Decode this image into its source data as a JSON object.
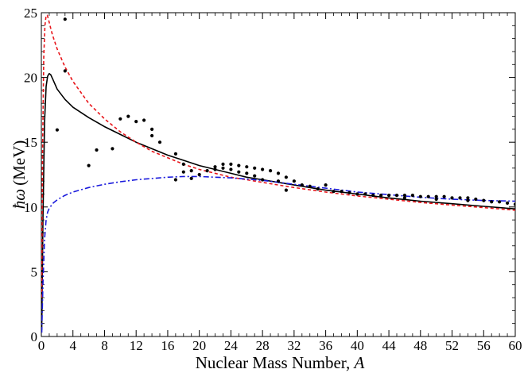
{
  "chart_data": {
    "type": "line",
    "xlabel": "Nuclear Mass Number, A",
    "xlabel_main": "Nuclear Mass Number, ",
    "xlabel_var": "A",
    "ylabel": "ħω (MeV)",
    "ylabel_symbol": "ħω",
    "ylabel_unit": "(MeV)",
    "xlim": [
      0,
      60
    ],
    "ylim": [
      0,
      25
    ],
    "x_ticks_major": [
      0,
      4,
      8,
      12,
      16,
      20,
      24,
      28,
      32,
      36,
      40,
      44,
      48,
      52,
      56,
      60
    ],
    "x_ticks_minor_step": 1,
    "y_ticks_major": [
      0,
      5,
      10,
      15,
      20,
      25
    ],
    "y_ticks_minor_step": 1,
    "grid": false,
    "legend": "none",
    "series": [
      {
        "style": "solid",
        "color": "#000000",
        "x": [
          0.05,
          0.2,
          0.4,
          0.6,
          0.8,
          1.0,
          1.2,
          1.5,
          2,
          3,
          4,
          6,
          8,
          10,
          12,
          14,
          16,
          18,
          20,
          22,
          24,
          26,
          28,
          30,
          32,
          36,
          40,
          44,
          48,
          52,
          56,
          60
        ],
        "y": [
          0.5,
          9.0,
          16.5,
          19.3,
          20.1,
          20.3,
          20.2,
          19.8,
          19.1,
          18.3,
          17.7,
          16.9,
          16.2,
          15.6,
          15.0,
          14.5,
          14.0,
          13.6,
          13.2,
          12.9,
          12.6,
          12.3,
          12.1,
          11.9,
          11.7,
          11.3,
          11.0,
          10.7,
          10.45,
          10.25,
          10.05,
          9.85
        ]
      },
      {
        "style": "dashed",
        "color": "#e8161b",
        "x": [
          0.05,
          0.15,
          0.3,
          0.45,
          0.6,
          0.75,
          0.9,
          1.1,
          1.4,
          2,
          3,
          4,
          6,
          8,
          10,
          12,
          14,
          16,
          18,
          20,
          22,
          24,
          26,
          28,
          30,
          32,
          36,
          40,
          44,
          48,
          52,
          56,
          60
        ],
        "y": [
          3.0,
          14.0,
          21.5,
          24.0,
          24.8,
          24.8,
          24.5,
          24.0,
          23.3,
          22.2,
          20.8,
          19.7,
          18.0,
          16.8,
          15.8,
          15.0,
          14.3,
          13.8,
          13.3,
          12.9,
          12.6,
          12.3,
          12.1,
          11.9,
          11.7,
          11.5,
          11.15,
          10.85,
          10.6,
          10.35,
          10.15,
          9.95,
          9.75
        ]
      },
      {
        "style": "dashdot",
        "color": "#1a1adc",
        "x": [
          0.05,
          0.2,
          0.4,
          0.6,
          0.8,
          1.0,
          1.5,
          2,
          3,
          4,
          6,
          8,
          10,
          12,
          14,
          16,
          18,
          20,
          22,
          24,
          26,
          28,
          30,
          32,
          36,
          40,
          44,
          48,
          52,
          56,
          60
        ],
        "y": [
          0.3,
          4.0,
          7.5,
          9.0,
          9.6,
          9.9,
          10.3,
          10.55,
          10.9,
          11.15,
          11.5,
          11.75,
          11.95,
          12.1,
          12.2,
          12.3,
          12.35,
          12.35,
          12.3,
          12.25,
          12.15,
          12.05,
          11.9,
          11.75,
          11.45,
          11.15,
          10.95,
          10.75,
          10.6,
          10.5,
          10.45
        ]
      }
    ],
    "points": {
      "color": "#000000",
      "x": [
        2,
        3,
        3,
        6,
        7,
        9,
        10,
        11,
        12,
        13,
        14,
        14,
        15,
        17,
        17,
        18,
        18,
        19,
        19,
        20,
        21,
        22,
        22,
        23,
        23,
        24,
        24,
        25,
        25,
        26,
        26,
        27,
        27,
        28,
        28,
        29,
        30,
        30,
        31,
        31,
        32,
        33,
        34,
        35,
        36,
        37,
        38,
        39,
        40,
        41,
        42,
        43,
        44,
        45,
        46,
        46,
        47,
        48,
        49,
        50,
        50,
        51,
        52,
        53,
        54,
        54,
        55,
        56,
        57,
        58,
        59,
        60
      ],
      "y": [
        15.95,
        24.5,
        20.5,
        13.2,
        14.4,
        14.5,
        16.8,
        17.0,
        16.6,
        16.7,
        16.0,
        15.5,
        15.0,
        14.1,
        12.1,
        13.3,
        12.7,
        12.8,
        12.2,
        12.5,
        12.8,
        13.1,
        12.9,
        13.3,
        13.0,
        13.3,
        12.9,
        13.2,
        12.7,
        13.1,
        12.6,
        13.0,
        12.4,
        12.9,
        12.1,
        12.8,
        12.6,
        12.0,
        12.3,
        11.3,
        12.0,
        11.7,
        11.6,
        11.4,
        11.7,
        11.2,
        11.2,
        11.1,
        11.0,
        11.0,
        10.9,
        10.9,
        10.9,
        10.9,
        10.9,
        10.7,
        10.9,
        10.8,
        10.8,
        10.8,
        10.6,
        10.8,
        10.7,
        10.7,
        10.7,
        10.5,
        10.6,
        10.5,
        10.4,
        10.4,
        10.3,
        10.2
      ]
    }
  }
}
